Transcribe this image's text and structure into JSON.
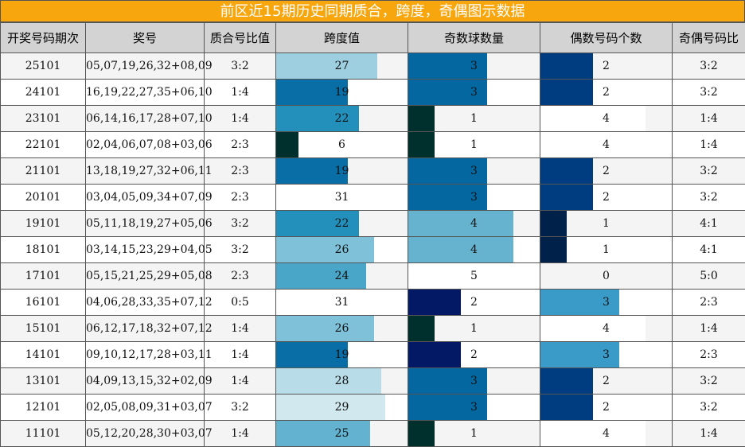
{
  "title": "前区近15期历史同期质合，跨度，奇偶图示数据",
  "chart_data": {
    "type": "table",
    "columns": [
      "开奖号码期次",
      "奖号",
      "质合号比值",
      "跨度值",
      "奇数球数量",
      "偶数号码个数",
      "奇偶号码比"
    ],
    "bar_scales": {
      "span_max": 35,
      "odd_max": 5,
      "even_max": 5
    },
    "rows": [
      {
        "period": "25101",
        "numbers": "05,07,19,26,32+08,09",
        "prime_ratio": "3:2",
        "span": 27,
        "odd": 3,
        "even": 2,
        "odd_even_ratio": "3:2"
      },
      {
        "period": "24101",
        "numbers": "16,19,22,27,35+06,10",
        "prime_ratio": "1:4",
        "span": 19,
        "odd": 3,
        "even": 2,
        "odd_even_ratio": "3:2"
      },
      {
        "period": "23101",
        "numbers": "06,14,16,17,28+07,10",
        "prime_ratio": "1:4",
        "span": 22,
        "odd": 1,
        "even": 4,
        "odd_even_ratio": "1:4"
      },
      {
        "period": "22101",
        "numbers": "02,04,06,07,08+03,06",
        "prime_ratio": "2:3",
        "span": 6,
        "odd": 1,
        "even": 4,
        "odd_even_ratio": "1:4"
      },
      {
        "period": "21101",
        "numbers": "13,18,19,27,32+06,11",
        "prime_ratio": "2:3",
        "span": 19,
        "odd": 3,
        "even": 2,
        "odd_even_ratio": "3:2"
      },
      {
        "period": "20101",
        "numbers": "03,04,05,09,34+07,09",
        "prime_ratio": "2:3",
        "span": 31,
        "odd": 3,
        "even": 2,
        "odd_even_ratio": "3:2"
      },
      {
        "period": "19101",
        "numbers": "05,11,18,19,27+05,06",
        "prime_ratio": "3:2",
        "span": 22,
        "odd": 4,
        "even": 1,
        "odd_even_ratio": "4:1"
      },
      {
        "period": "18101",
        "numbers": "03,14,15,23,29+04,05",
        "prime_ratio": "3:2",
        "span": 26,
        "odd": 4,
        "even": 1,
        "odd_even_ratio": "4:1"
      },
      {
        "period": "17101",
        "numbers": "05,15,21,25,29+05,08",
        "prime_ratio": "2:3",
        "span": 24,
        "odd": 5,
        "even": 0,
        "odd_even_ratio": "5:0"
      },
      {
        "period": "16101",
        "numbers": "04,06,28,33,35+07,12",
        "prime_ratio": "0:5",
        "span": 31,
        "odd": 2,
        "even": 3,
        "odd_even_ratio": "2:3"
      },
      {
        "period": "15101",
        "numbers": "06,12,17,18,32+07,12",
        "prime_ratio": "1:4",
        "span": 26,
        "odd": 1,
        "even": 4,
        "odd_even_ratio": "1:4"
      },
      {
        "period": "14101",
        "numbers": "09,10,12,17,28+03,11",
        "prime_ratio": "1:4",
        "span": 19,
        "odd": 2,
        "even": 3,
        "odd_even_ratio": "2:3"
      },
      {
        "period": "13101",
        "numbers": "04,09,13,15,32+02,09",
        "prime_ratio": "1:4",
        "span": 28,
        "odd": 3,
        "even": 2,
        "odd_even_ratio": "3:2"
      },
      {
        "period": "12101",
        "numbers": "02,05,08,09,31+03,07",
        "prime_ratio": "3:2",
        "span": 29,
        "odd": 3,
        "even": 2,
        "odd_even_ratio": "3:2"
      },
      {
        "period": "11101",
        "numbers": "05,12,20,28,30+03,07",
        "prime_ratio": "1:4",
        "span": 25,
        "odd": 1,
        "even": 4,
        "odd_even_ratio": "1:4"
      }
    ],
    "colors": {
      "span": {
        "6": "#00302e",
        "19": "#0a6ea6",
        "22": "#2390bb",
        "24": "#4aa6c8",
        "25": "#62b2d0",
        "26": "#7fc1d8",
        "27": "#9dcfe0",
        "28": "#b8dde8",
        "29": "#d1e8ee",
        "31": "#ffffff"
      },
      "odd": {
        "1": "#00302e",
        "2": "#031966",
        "3": "#04679f",
        "4": "#66b3cf",
        "5": "#ffffff"
      },
      "even": {
        "0": "#ffffff",
        "1": "#00224a",
        "2": "#003d80",
        "3": "#3a9bc8",
        "4": "#ffffff"
      }
    }
  }
}
